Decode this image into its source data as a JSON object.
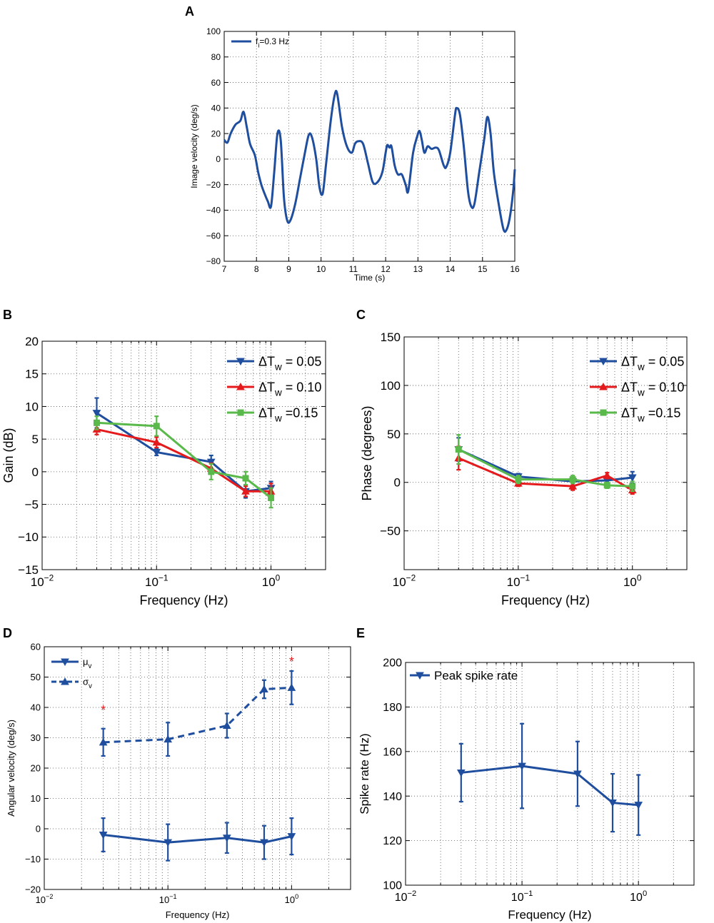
{
  "colors": {
    "blue": "#1f4e9e",
    "red": "#e41a1c",
    "green": "#5ab94b",
    "star": "#e41a1c"
  },
  "chart_data": [
    {
      "panel": "A",
      "type": "line",
      "xlabel": "Time (s)",
      "ylabel": "Image velocity (deg/s)",
      "xlim": [
        7,
        16
      ],
      "ylim": [
        -80,
        100
      ],
      "xticks": [
        7,
        8,
        9,
        10,
        11,
        12,
        13,
        14,
        15,
        16
      ],
      "yticks": [
        -80,
        -60,
        -40,
        -20,
        0,
        20,
        40,
        60,
        80,
        100
      ],
      "legend": "top-left",
      "series": [
        {
          "name": "f",
          "name_sub": "i",
          "name_rest": "=0.3 Hz",
          "color": "blue",
          "points": [
            [
              7.0,
              15
            ],
            [
              7.1,
              13
            ],
            [
              7.2,
              20
            ],
            [
              7.35,
              27
            ],
            [
              7.5,
              30
            ],
            [
              7.6,
              37
            ],
            [
              7.7,
              25
            ],
            [
              7.8,
              12
            ],
            [
              7.95,
              3
            ],
            [
              8.05,
              -10
            ],
            [
              8.15,
              -20
            ],
            [
              8.25,
              -27
            ],
            [
              8.35,
              -33
            ],
            [
              8.45,
              -37
            ],
            [
              8.55,
              -10
            ],
            [
              8.65,
              20
            ],
            [
              8.75,
              15
            ],
            [
              8.85,
              -30
            ],
            [
              8.95,
              -48
            ],
            [
              9.05,
              -48
            ],
            [
              9.2,
              -35
            ],
            [
              9.35,
              -15
            ],
            [
              9.5,
              5
            ],
            [
              9.62,
              19
            ],
            [
              9.72,
              17
            ],
            [
              9.85,
              0
            ],
            [
              9.95,
              -22
            ],
            [
              10.05,
              -27
            ],
            [
              10.15,
              -5
            ],
            [
              10.3,
              30
            ],
            [
              10.42,
              50
            ],
            [
              10.5,
              51
            ],
            [
              10.65,
              25
            ],
            [
              10.8,
              10
            ],
            [
              10.95,
              5
            ],
            [
              11.05,
              12
            ],
            [
              11.15,
              14
            ],
            [
              11.3,
              12
            ],
            [
              11.45,
              -3
            ],
            [
              11.6,
              -18
            ],
            [
              11.75,
              -18
            ],
            [
              11.9,
              -10
            ],
            [
              12.0,
              5
            ],
            [
              12.05,
              11
            ],
            [
              12.12,
              9
            ],
            [
              12.18,
              10
            ],
            [
              12.28,
              -5
            ],
            [
              12.38,
              -12
            ],
            [
              12.5,
              -12
            ],
            [
              12.62,
              -20
            ],
            [
              12.7,
              -25
            ],
            [
              12.85,
              5
            ],
            [
              12.98,
              18
            ],
            [
              13.05,
              22
            ],
            [
              13.12,
              15
            ],
            [
              13.2,
              5
            ],
            [
              13.3,
              10
            ],
            [
              13.42,
              8
            ],
            [
              13.55,
              9
            ],
            [
              13.65,
              7
            ],
            [
              13.8,
              -5
            ],
            [
              13.88,
              -6
            ],
            [
              14.0,
              5
            ],
            [
              14.15,
              35
            ],
            [
              14.2,
              40
            ],
            [
              14.3,
              35
            ],
            [
              14.42,
              10
            ],
            [
              14.55,
              -25
            ],
            [
              14.65,
              -37
            ],
            [
              14.75,
              -35
            ],
            [
              14.9,
              -10
            ],
            [
              15.05,
              15
            ],
            [
              15.15,
              33
            ],
            [
              15.25,
              20
            ],
            [
              15.35,
              -10
            ],
            [
              15.5,
              -35
            ],
            [
              15.65,
              -55
            ],
            [
              15.75,
              -55
            ],
            [
              15.85,
              -45
            ],
            [
              15.95,
              -25
            ],
            [
              16.0,
              -8
            ]
          ]
        }
      ]
    },
    {
      "panel": "B",
      "type": "line",
      "xscale": "log",
      "xlabel": "Frequency (Hz)",
      "ylabel": "Gain (dB)",
      "xlim": [
        0.01,
        3
      ],
      "ylim": [
        -15,
        20
      ],
      "xtick_labels": [
        "10",
        "10",
        "10"
      ],
      "xtick_exps": [
        "-2",
        "-1",
        "0"
      ],
      "yticks": [
        -15,
        -10,
        -5,
        0,
        5,
        10,
        15,
        20
      ],
      "legend": "top-right",
      "series": [
        {
          "name": "ΔT",
          "name_sub": "w",
          "name_rest": " = 0.05",
          "color": "blue",
          "marker": "tri-down",
          "x": [
            0.03,
            0.1,
            0.3,
            0.6,
            1.0
          ],
          "y": [
            9,
            3,
            1.5,
            -3,
            -2.5
          ],
          "err": [
            2.3,
            0.5,
            1.0,
            1.0,
            1.0
          ]
        },
        {
          "name": "ΔT",
          "name_sub": "w",
          "name_rest": " = 0.10",
          "color": "red",
          "marker": "tri-up",
          "x": [
            0.03,
            0.1,
            0.3,
            0.6,
            1.0
          ],
          "y": [
            6.5,
            4.5,
            0.5,
            -3,
            -3
          ],
          "err": [
            0.8,
            0.8,
            0.8,
            0.8,
            1.2
          ]
        },
        {
          "name": "ΔT",
          "name_sub": "w",
          "name_rest": " =0.15",
          "color": "green",
          "marker": "square",
          "x": [
            0.03,
            0.1,
            0.3,
            0.6,
            1.0
          ],
          "y": [
            7.5,
            7,
            0,
            -1,
            -4
          ],
          "err": [
            1.0,
            1.5,
            1.2,
            1.0,
            1.5
          ]
        }
      ]
    },
    {
      "panel": "C",
      "type": "line",
      "xscale": "log",
      "xlabel": "Frequency (Hz)",
      "ylabel": "Phase (degrees)",
      "xlim": [
        0.01,
        3
      ],
      "ylim": [
        -90,
        150
      ],
      "xtick_labels": [
        "10",
        "10",
        "10"
      ],
      "xtick_exps": [
        "-2",
        "-1",
        "0"
      ],
      "yticks": [
        -50,
        0,
        50,
        100,
        150
      ],
      "legend": "top-right",
      "series": [
        {
          "name": "ΔT",
          "name_sub": "w",
          "name_rest": " = 0.05",
          "color": "blue",
          "marker": "tri-down",
          "x": [
            0.03,
            0.1,
            0.3,
            0.6,
            1.0
          ],
          "y": [
            34,
            6,
            1,
            2,
            5
          ],
          "err": [
            12,
            3,
            4,
            3,
            6
          ]
        },
        {
          "name": "ΔT",
          "name_sub": "w",
          "name_rest": " = 0.10",
          "color": "red",
          "marker": "tri-up",
          "x": [
            0.03,
            0.1,
            0.3,
            0.6,
            1.0
          ],
          "y": [
            25,
            -1,
            -4,
            7,
            -8
          ],
          "err": [
            12,
            3,
            4,
            3,
            4
          ]
        },
        {
          "name": "ΔT",
          "name_sub": "w",
          "name_rest": " =0.15",
          "color": "green",
          "marker": "square",
          "x": [
            0.03,
            0.1,
            0.3,
            0.6,
            1.0
          ],
          "y": [
            34,
            3,
            3,
            -3,
            -4
          ],
          "err": [
            15,
            4,
            4,
            3,
            5
          ]
        }
      ]
    },
    {
      "panel": "D",
      "type": "line",
      "xscale": "log",
      "xlabel": "Frequency (Hz)",
      "ylabel": "Angular velocity (deg/s)",
      "xlim": [
        0.01,
        3
      ],
      "ylim": [
        -20,
        60
      ],
      "xtick_labels": [
        "10",
        "10",
        "10"
      ],
      "xtick_exps": [
        "-2",
        "-1",
        "0"
      ],
      "yticks": [
        -20,
        -10,
        0,
        10,
        20,
        30,
        40,
        50,
        60
      ],
      "legend": "top-left",
      "series": [
        {
          "name": "μ",
          "name_sub": "v",
          "name_rest": "",
          "color": "blue",
          "marker": "tri-down",
          "dashed": false,
          "x": [
            0.03,
            0.1,
            0.3,
            0.6,
            1.0
          ],
          "y": [
            -2,
            -4.5,
            -3,
            -4.5,
            -2.5
          ],
          "err": [
            5.5,
            6,
            5,
            5.5,
            6
          ]
        },
        {
          "name": "σ",
          "name_sub": "v",
          "name_rest": "",
          "color": "blue",
          "marker": "tri-up",
          "dashed": true,
          "x": [
            0.03,
            0.1,
            0.3,
            0.6,
            1.0
          ],
          "y": [
            28.5,
            29.5,
            34,
            46,
            46.5
          ],
          "err": [
            4.5,
            5.5,
            4,
            3,
            5.5
          ]
        }
      ],
      "annotations": [
        {
          "text": "*",
          "x": 0.03,
          "y": 39.5
        },
        {
          "text": "*",
          "x": 1.0,
          "y": 55.5
        }
      ]
    },
    {
      "panel": "E",
      "type": "line",
      "xscale": "log",
      "xlabel": "Frequency (Hz)",
      "ylabel": "Spike rate (Hz)",
      "xlim": [
        0.01,
        3
      ],
      "ylim": [
        100,
        200
      ],
      "xtick_labels": [
        "10",
        "10",
        "10"
      ],
      "xtick_exps": [
        "-2",
        "-1",
        "0"
      ],
      "yticks": [
        100,
        120,
        140,
        160,
        180,
        200
      ],
      "legend": "top-left",
      "series": [
        {
          "name": "Peak spike rate",
          "name_sub": "",
          "name_rest": "",
          "color": "blue",
          "marker": "tri-down",
          "x": [
            0.03,
            0.1,
            0.3,
            0.6,
            1.0
          ],
          "y": [
            150.5,
            153.5,
            150,
            137,
            136
          ],
          "err": [
            13,
            19,
            14.5,
            13,
            13.5
          ]
        }
      ]
    }
  ]
}
